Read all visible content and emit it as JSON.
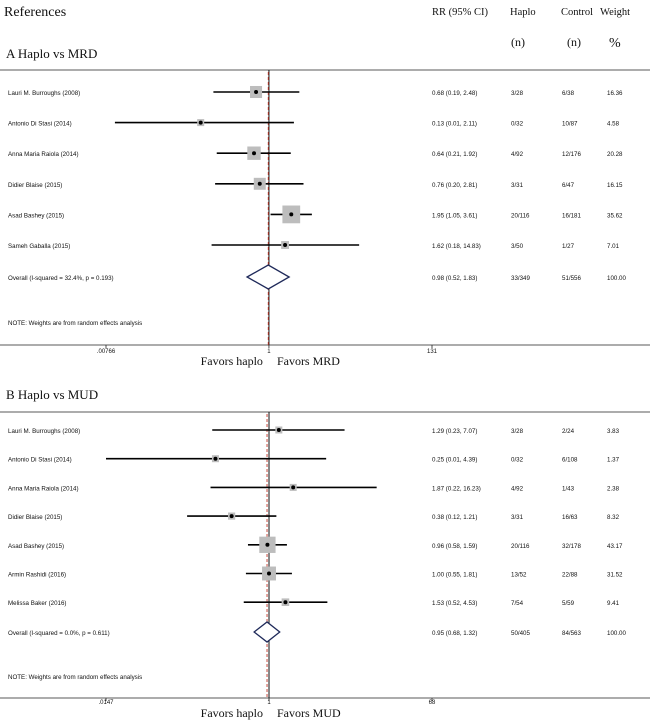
{
  "header": {
    "references": "References",
    "rr": "RR (95% CI)",
    "haplo": "Haplo",
    "control": "Control",
    "weight": "Weight",
    "n1": "(n)",
    "n2": "(n)",
    "pct": "%"
  },
  "chart_data": [
    {
      "type": "forest",
      "title": "A   Haplo vs MRD",
      "xmin_label": ".00766",
      "xmax_label": "131",
      "center_label": "1",
      "favors_left": "Favors haplo",
      "favors_right": "Favors MRD",
      "note": "NOTE: Weights are from random effects analysis",
      "studies": [
        {
          "name": "Lauri M. Burroughs (2008)",
          "rr": 0.68,
          "lo": 0.19,
          "hi": 2.48,
          "ci_text": "0.68 (0.19, 2.48)",
          "haplo": "3/28",
          "control": "6/38",
          "weight": "16.36"
        },
        {
          "name": "Antonio Di Stasi (2014)",
          "rr": 0.13,
          "lo": 0.01,
          "hi": 2.11,
          "ci_text": "0.13 (0.01, 2.11)",
          "haplo": "0/32",
          "control": "10/87",
          "weight": "4.58"
        },
        {
          "name": "Anna Maria Raiola (2014)",
          "rr": 0.64,
          "lo": 0.21,
          "hi": 1.92,
          "ci_text": "0.64 (0.21, 1.92)",
          "haplo": "4/92",
          "control": "12/176",
          "weight": "20.28"
        },
        {
          "name": "Didier Blaise (2015)",
          "rr": 0.76,
          "lo": 0.2,
          "hi": 2.81,
          "ci_text": "0.76 (0.20, 2.81)",
          "haplo": "3/31",
          "control": "6/47",
          "weight": "16.15"
        },
        {
          "name": "Asad Bashey  (2015)",
          "rr": 1.95,
          "lo": 1.05,
          "hi": 3.61,
          "ci_text": "1.95 (1.05, 3.61)",
          "haplo": "20/116",
          "control": "16/181",
          "weight": "35.62"
        },
        {
          "name": "Sameh Gaballa (2015)",
          "rr": 1.62,
          "lo": 0.18,
          "hi": 14.83,
          "ci_text": "1.62 (0.18, 14.83)",
          "haplo": "3/50",
          "control": "1/27",
          "weight": "7.01"
        }
      ],
      "overall": {
        "name": "Overall  (I-squared = 32.4%, p = 0.193)",
        "rr": 0.98,
        "lo": 0.52,
        "hi": 1.83,
        "ci_text": "0.98 (0.52, 1.83)",
        "haplo": "33/349",
        "control": "51/556",
        "weight": "100.00"
      }
    },
    {
      "type": "forest",
      "title": "B   Haplo vs MUD",
      "xmin_label": ".0147",
      "xmax_label": "68",
      "center_label": "1",
      "favors_left": "Favors haplo",
      "favors_right": "Favors MUD",
      "note": "NOTE: Weights are from random effects analysis",
      "studies": [
        {
          "name": "Lauri M. Burroughs (2008)",
          "rr": 1.29,
          "lo": 0.23,
          "hi": 7.07,
          "ci_text": "1.29 (0.23, 7.07)",
          "haplo": "3/28",
          "control": "2/24",
          "weight": "3.83"
        },
        {
          "name": "Antonio Di Stasi (2014)",
          "rr": 0.25,
          "lo": 0.01,
          "hi": 4.39,
          "ci_text": "0.25 (0.01, 4.39)",
          "haplo": "0/32",
          "control": "6/108",
          "weight": "1.37"
        },
        {
          "name": "Anna Maria Raiola (2014)",
          "rr": 1.87,
          "lo": 0.22,
          "hi": 16.23,
          "ci_text": "1.87 (0.22, 16.23)",
          "haplo": "4/92",
          "control": "1/43",
          "weight": "2.38"
        },
        {
          "name": "Didier Blaise (2015)",
          "rr": 0.38,
          "lo": 0.12,
          "hi": 1.21,
          "ci_text": "0.38 (0.12, 1.21)",
          "haplo": "3/31",
          "control": "16/63",
          "weight": "8.32"
        },
        {
          "name": "Asad Bashey  (2015)",
          "rr": 0.96,
          "lo": 0.58,
          "hi": 1.59,
          "ci_text": "0.96 (0.58, 1.59)",
          "haplo": "20/116",
          "control": "32/178",
          "weight": "43.17"
        },
        {
          "name": "Armin Rashidi (2016)",
          "rr": 1.0,
          "lo": 0.55,
          "hi": 1.81,
          "ci_text": "1.00 (0.55, 1.81)",
          "haplo": "13/52",
          "control": "22/88",
          "weight": "31.52"
        },
        {
          "name": "Melissa Baker (2016)",
          "rr": 1.53,
          "lo": 0.52,
          "hi": 4.53,
          "ci_text": "1.53 (0.52, 4.53)",
          "haplo": "7/54",
          "control": "5/59",
          "weight": "9.41"
        }
      ],
      "overall": {
        "name": "Overall  (I-squared = 0.0%, p = 0.611)",
        "rr": 0.95,
        "lo": 0.68,
        "hi": 1.32,
        "ci_text": "0.95 (0.68, 1.32)",
        "haplo": "50/405",
        "control": "84/563",
        "weight": "100.00"
      }
    }
  ]
}
